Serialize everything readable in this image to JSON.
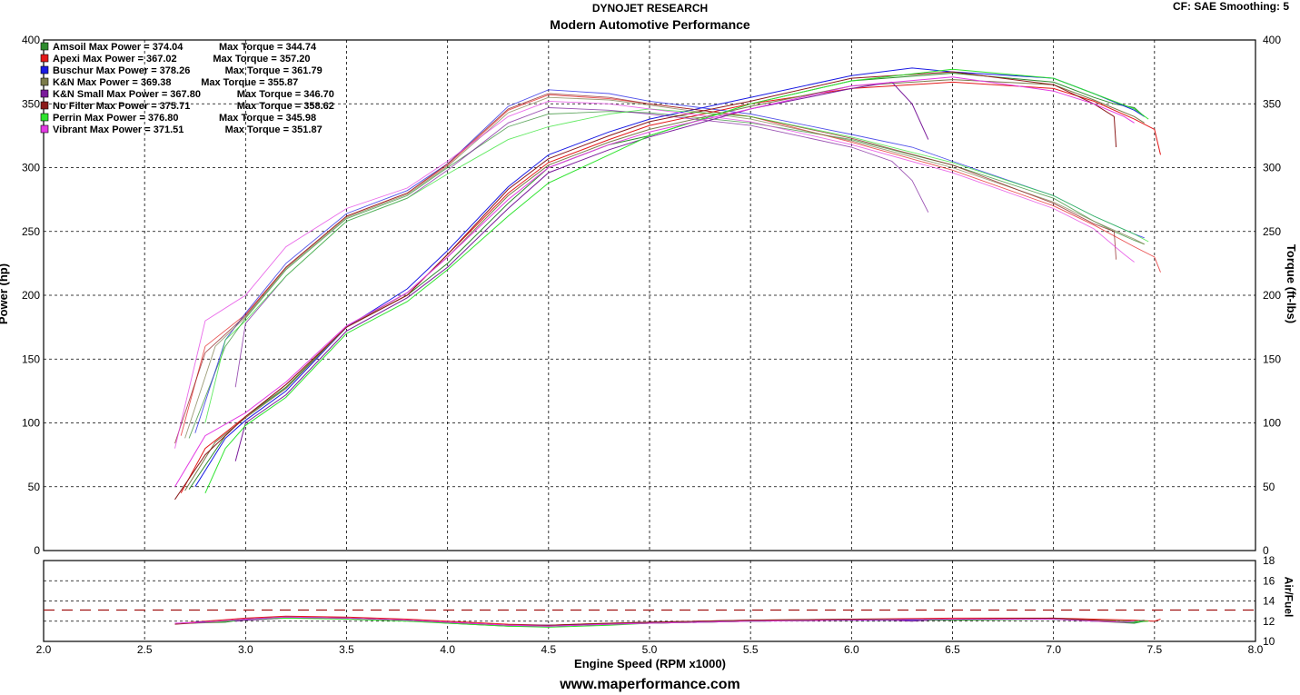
{
  "header": {
    "line1": "DYNOJET RESEARCH",
    "line2": "Modern Automotive Performance",
    "corrections": "CF: SAE  Smoothing: 5"
  },
  "footer": {
    "url": "www.maperformance.com"
  },
  "chart_data": {
    "type": "line",
    "xlabel": "Engine Speed (RPM x1000)",
    "ylabel_left": "Power (hp)",
    "ylabel_right": "Torque (ft-lbs)",
    "ylabel_airfuel": "Air/Fuel",
    "xlim": [
      2.0,
      8.0
    ],
    "ylim": [
      0,
      400
    ],
    "airfuel_ylim": [
      10,
      18
    ],
    "x_ticks": [
      "2.0",
      "2.5",
      "3.0",
      "3.5",
      "4.0",
      "4.5",
      "5.0",
      "5.5",
      "6.0",
      "6.5",
      "7.0",
      "7.5",
      "8.0"
    ],
    "y_ticks": [
      "0",
      "50",
      "100",
      "150",
      "200",
      "250",
      "300",
      "350",
      "400"
    ],
    "airfuel_ticks": [
      "10",
      "12",
      "14",
      "16",
      "18"
    ],
    "airfuel_reference": 13.1,
    "grid": true,
    "legend_placement": "top-left",
    "series": [
      {
        "name": "Amsoil",
        "color": "#2e8b2e",
        "label": "Amsoil Max Power = 374.04",
        "torque_label": "Max Torque = 344.74",
        "rpm": [
          2.72,
          2.9,
          3.0,
          3.2,
          3.5,
          3.8,
          4.0,
          4.3,
          4.5,
          4.8,
          5.0,
          5.5,
          6.0,
          6.5,
          7.0,
          7.2,
          7.3,
          7.4,
          7.45
        ],
        "power": [
          48,
          90,
          105,
          128,
          175,
          200,
          225,
          272,
          300,
          318,
          325,
          350,
          368,
          374,
          367,
          355,
          350,
          347,
          340
        ],
        "torque": [
          88,
          160,
          182,
          220,
          260,
          278,
          300,
          332,
          342,
          344,
          343,
          335,
          322,
          302,
          276,
          258,
          250,
          243,
          240
        ],
        "afr": [
          11.8,
          11.9,
          12.2,
          12.4,
          12.3,
          12.1,
          11.8,
          11.5,
          11.5,
          11.7,
          11.8,
          12.0,
          12.1,
          12.1,
          12.2,
          12.0,
          11.9,
          11.8,
          12.0
        ]
      },
      {
        "name": "Apexi",
        "color": "#e31a1a",
        "label": "Apexi Max Power = 367.02",
        "torque_label": "Max Torque = 357.20",
        "rpm": [
          2.68,
          2.8,
          3.0,
          3.2,
          3.5,
          3.8,
          4.0,
          4.3,
          4.5,
          4.8,
          5.0,
          5.5,
          6.0,
          6.5,
          7.0,
          7.2,
          7.4,
          7.5,
          7.53
        ],
        "power": [
          45,
          80,
          105,
          130,
          175,
          200,
          232,
          280,
          304,
          322,
          333,
          350,
          362,
          367,
          362,
          352,
          338,
          330,
          310
        ],
        "torque": [
          90,
          160,
          185,
          222,
          262,
          280,
          302,
          345,
          357,
          354,
          350,
          340,
          320,
          298,
          270,
          255,
          238,
          230,
          218
        ],
        "afr": [
          11.8,
          12.0,
          12.3,
          12.5,
          12.4,
          12.2,
          12.0,
          11.7,
          11.6,
          11.8,
          11.9,
          12.1,
          12.2,
          12.3,
          12.3,
          12.2,
          12.1,
          12.0,
          12.2
        ]
      },
      {
        "name": "Buschur",
        "color": "#1a1ae3",
        "label": "Buschur Max Power = 378.26",
        "torque_label": "Max Torque = 361.79",
        "rpm": [
          2.75,
          2.9,
          3.0,
          3.2,
          3.5,
          3.8,
          4.0,
          4.3,
          4.5,
          4.8,
          5.0,
          5.5,
          6.0,
          6.3,
          6.5,
          7.0,
          7.2,
          7.4,
          7.45
        ],
        "power": [
          50,
          88,
          102,
          125,
          175,
          205,
          235,
          285,
          310,
          328,
          338,
          355,
          372,
          378,
          375,
          370,
          358,
          345,
          340
        ],
        "torque": [
          92,
          165,
          186,
          225,
          264,
          282,
          303,
          348,
          361,
          358,
          352,
          342,
          326,
          316,
          305,
          278,
          262,
          248,
          245
        ],
        "afr": [
          11.9,
          12.0,
          12.2,
          12.4,
          12.3,
          12.1,
          11.9,
          11.6,
          11.6,
          11.7,
          11.9,
          12.0,
          12.1,
          12.1,
          12.2,
          12.2,
          12.0,
          11.9,
          12.0
        ]
      },
      {
        "name": "K&N",
        "color": "#7b7b4a",
        "label": "K&N Max Power = 369.38",
        "torque_label": "Max Torque = 355.87",
        "rpm": [
          2.7,
          2.85,
          3.0,
          3.2,
          3.5,
          3.8,
          4.0,
          4.3,
          4.5,
          4.8,
          5.0,
          5.5,
          6.0,
          6.5,
          7.0,
          7.2,
          7.4,
          7.45
        ],
        "power": [
          47,
          85,
          104,
          127,
          175,
          202,
          230,
          278,
          302,
          320,
          330,
          348,
          364,
          369,
          365,
          353,
          340,
          335
        ],
        "torque": [
          88,
          160,
          183,
          221,
          261,
          279,
          301,
          343,
          355,
          353,
          349,
          338,
          321,
          300,
          273,
          258,
          244,
          240
        ],
        "afr": [
          11.8,
          11.9,
          12.2,
          12.4,
          12.3,
          12.1,
          11.9,
          11.6,
          11.5,
          11.7,
          11.8,
          12.0,
          12.1,
          12.2,
          12.2,
          12.1,
          12.0,
          12.1
        ]
      },
      {
        "name": "K&N Small",
        "color": "#7a1a9a",
        "label": "K&N Small Max Power = 367.80",
        "torque_label": "Max Torque = 346.70",
        "rpm": [
          2.95,
          3.0,
          3.2,
          3.5,
          3.8,
          4.0,
          4.3,
          4.5,
          4.8,
          5.0,
          5.5,
          6.0,
          6.2,
          6.3,
          6.38
        ],
        "power": [
          70,
          100,
          122,
          172,
          198,
          222,
          268,
          296,
          314,
          324,
          346,
          362,
          367,
          350,
          322
        ],
        "torque": [
          128,
          178,
          215,
          258,
          276,
          298,
          335,
          347,
          345,
          342,
          333,
          316,
          305,
          290,
          265
        ],
        "afr": [
          12.0,
          12.1,
          12.3,
          12.3,
          12.1,
          11.9,
          11.6,
          11.5,
          11.7,
          11.8,
          12.0,
          12.1,
          12.1,
          12.0,
          12.1
        ]
      },
      {
        "name": "No Filter",
        "color": "#8b1a1a",
        "label": "No Filter Max Power = 375.71",
        "torque_label": "Max Torque = 358.62",
        "rpm": [
          2.65,
          2.8,
          3.0,
          3.2,
          3.5,
          3.8,
          4.0,
          4.3,
          4.5,
          4.8,
          5.0,
          5.5,
          6.0,
          6.5,
          7.0,
          7.2,
          7.3,
          7.31
        ],
        "power": [
          40,
          75,
          105,
          130,
          175,
          200,
          232,
          283,
          307,
          325,
          336,
          352,
          370,
          375,
          365,
          350,
          340,
          316
        ],
        "torque": [
          84,
          155,
          184,
          222,
          262,
          280,
          303,
          346,
          358,
          355,
          350,
          340,
          323,
          302,
          272,
          256,
          250,
          228
        ],
        "afr": [
          11.7,
          11.9,
          12.2,
          12.4,
          12.3,
          12.1,
          11.9,
          11.6,
          11.6,
          11.8,
          11.9,
          12.1,
          12.2,
          12.2,
          12.3,
          12.1,
          12.0,
          12.0
        ]
      },
      {
        "name": "Perrin",
        "color": "#2ee32e",
        "label": "Perrin Max Power = 376.80",
        "torque_label": "Max Torque = 345.98",
        "rpm": [
          2.8,
          2.9,
          3.0,
          3.2,
          3.5,
          3.8,
          4.0,
          4.3,
          4.5,
          4.8,
          5.0,
          5.5,
          6.0,
          6.5,
          7.0,
          7.2,
          7.4,
          7.47
        ],
        "power": [
          45,
          80,
          98,
          120,
          170,
          195,
          220,
          262,
          288,
          310,
          325,
          350,
          368,
          377,
          370,
          358,
          346,
          338
        ],
        "torque": [
          100,
          165,
          180,
          215,
          258,
          276,
          295,
          322,
          332,
          342,
          346,
          340,
          324,
          304,
          278,
          262,
          248,
          242
        ],
        "afr": [
          11.9,
          12.0,
          12.2,
          12.3,
          12.2,
          12.0,
          11.8,
          11.5,
          11.4,
          11.6,
          11.8,
          12.0,
          12.1,
          12.2,
          12.2,
          12.0,
          11.9,
          12.0
        ]
      },
      {
        "name": "Vibrant",
        "color": "#e33ae3",
        "label": "Vibrant Max Power = 371.51",
        "torque_label": "Max Torque = 351.87",
        "rpm": [
          2.65,
          2.8,
          3.0,
          3.2,
          3.5,
          3.8,
          4.0,
          4.3,
          4.5,
          4.8,
          5.0,
          5.5,
          6.0,
          6.5,
          7.0,
          7.2,
          7.35,
          7.4
        ],
        "power": [
          50,
          90,
          108,
          132,
          176,
          202,
          230,
          275,
          300,
          318,
          328,
          346,
          364,
          371,
          360,
          350,
          340,
          335
        ],
        "torque": [
          80,
          180,
          200,
          238,
          268,
          284,
          305,
          340,
          352,
          350,
          346,
          336,
          318,
          296,
          268,
          252,
          232,
          226
        ],
        "afr": [
          11.8,
          11.9,
          12.2,
          12.4,
          12.3,
          12.1,
          11.9,
          11.6,
          11.5,
          11.7,
          11.8,
          12.0,
          12.1,
          12.2,
          12.2,
          12.0,
          11.9,
          12.0
        ]
      }
    ]
  }
}
